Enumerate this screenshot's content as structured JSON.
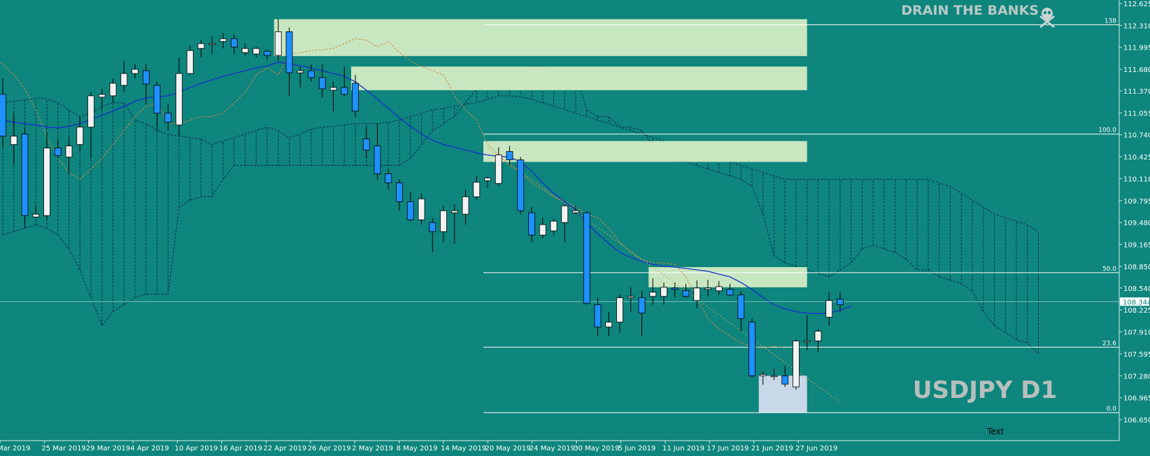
{
  "branding": {
    "text": "DRAIN THE BANKS"
  },
  "symbol_label": "USDJPY D1",
  "chart_data": {
    "type": "candlestick",
    "symbol": "USDJPY",
    "timeframe": "D1",
    "price_axis": {
      "ylim": [
        106.65,
        112.625
      ],
      "ticks": [
        "112.625",
        "112.310",
        "111.995",
        "111.680",
        "111.370",
        "111.055",
        "110.740",
        "110.425",
        "110.110",
        "109.795",
        "109.480",
        "109.165",
        "108.850",
        "108.540",
        "108.225",
        "107.910",
        "107.595",
        "107.280",
        "106.965",
        "106.650"
      ],
      "current_price": "108.344"
    },
    "date_axis": {
      "labels": [
        "Mar 2019",
        "25 Mar 2019",
        "29 Mar 2019",
        "4 Apr 2019",
        "10 Apr 2019",
        "16 Apr 2019",
        "22 Apr 2019",
        "26 Apr 2019",
        "2 May 2019",
        "8 May 2019",
        "14 May 2019",
        "20 May 2019",
        "24 May 2019",
        "30 May 2019",
        "5 Jun 2019",
        "11 Jun 2019",
        "17 Jun 2019",
        "21 Jun 2019",
        "27 Jun 2019"
      ]
    },
    "candles": [
      {
        "o": 111.32,
        "h": 111.55,
        "l": 110.55,
        "c": 110.72
      },
      {
        "o": 110.6,
        "h": 111.05,
        "l": 110.3,
        "c": 110.72
      },
      {
        "o": 110.75,
        "h": 110.85,
        "l": 109.4,
        "c": 109.58
      },
      {
        "o": 109.56,
        "h": 109.72,
        "l": 109.55,
        "c": 109.6
      },
      {
        "o": 109.58,
        "h": 110.78,
        "l": 109.52,
        "c": 110.55
      },
      {
        "o": 110.55,
        "h": 110.68,
        "l": 110.4,
        "c": 110.44
      },
      {
        "o": 110.42,
        "h": 110.7,
        "l": 110.18,
        "c": 110.58
      },
      {
        "o": 110.6,
        "h": 111.0,
        "l": 110.5,
        "c": 110.85
      },
      {
        "o": 110.85,
        "h": 111.35,
        "l": 110.4,
        "c": 111.3
      },
      {
        "o": 111.28,
        "h": 111.4,
        "l": 111.1,
        "c": 111.32
      },
      {
        "o": 111.3,
        "h": 111.55,
        "l": 111.2,
        "c": 111.48
      },
      {
        "o": 111.45,
        "h": 111.8,
        "l": 111.35,
        "c": 111.62
      },
      {
        "o": 111.62,
        "h": 111.76,
        "l": 111.55,
        "c": 111.68
      },
      {
        "o": 111.66,
        "h": 111.75,
        "l": 111.18,
        "c": 111.47
      },
      {
        "o": 111.45,
        "h": 111.5,
        "l": 110.8,
        "c": 111.05
      },
      {
        "o": 111.05,
        "h": 111.18,
        "l": 110.8,
        "c": 110.92
      },
      {
        "o": 110.88,
        "h": 111.85,
        "l": 110.72,
        "c": 111.62
      },
      {
        "o": 111.62,
        "h": 112.02,
        "l": 111.6,
        "c": 111.95
      },
      {
        "o": 111.98,
        "h": 112.1,
        "l": 111.85,
        "c": 112.05
      },
      {
        "o": 112.05,
        "h": 112.15,
        "l": 111.9,
        "c": 112.05
      },
      {
        "o": 112.08,
        "h": 112.2,
        "l": 111.98,
        "c": 112.12
      },
      {
        "o": 112.12,
        "h": 112.18,
        "l": 111.9,
        "c": 112.0
      },
      {
        "o": 111.92,
        "h": 112.05,
        "l": 111.88,
        "c": 111.98
      },
      {
        "o": 111.9,
        "h": 112.0,
        "l": 111.85,
        "c": 111.98
      },
      {
        "o": 111.94,
        "h": 111.96,
        "l": 111.82,
        "c": 111.88
      },
      {
        "o": 111.88,
        "h": 112.4,
        "l": 111.8,
        "c": 112.22
      },
      {
        "o": 112.22,
        "h": 112.28,
        "l": 111.3,
        "c": 111.63
      },
      {
        "o": 111.63,
        "h": 111.72,
        "l": 111.42,
        "c": 111.66
      },
      {
        "o": 111.66,
        "h": 111.75,
        "l": 111.5,
        "c": 111.56
      },
      {
        "o": 111.56,
        "h": 111.75,
        "l": 111.28,
        "c": 111.4
      },
      {
        "o": 111.38,
        "h": 111.5,
        "l": 111.08,
        "c": 111.42
      },
      {
        "o": 111.42,
        "h": 111.72,
        "l": 111.3,
        "c": 111.32
      },
      {
        "o": 111.48,
        "h": 111.6,
        "l": 111.0,
        "c": 111.08
      },
      {
        "o": 110.68,
        "h": 110.85,
        "l": 110.4,
        "c": 110.52
      },
      {
        "o": 110.58,
        "h": 110.9,
        "l": 110.1,
        "c": 110.18
      },
      {
        "o": 110.18,
        "h": 110.25,
        "l": 109.95,
        "c": 110.05
      },
      {
        "o": 110.05,
        "h": 110.1,
        "l": 109.65,
        "c": 109.78
      },
      {
        "o": 109.78,
        "h": 109.92,
        "l": 109.5,
        "c": 109.52
      },
      {
        "o": 109.52,
        "h": 109.9,
        "l": 109.45,
        "c": 109.82
      },
      {
        "o": 109.48,
        "h": 109.55,
        "l": 109.05,
        "c": 109.35
      },
      {
        "o": 109.35,
        "h": 109.72,
        "l": 109.2,
        "c": 109.65
      },
      {
        "o": 109.62,
        "h": 109.74,
        "l": 109.18,
        "c": 109.65
      },
      {
        "o": 109.6,
        "h": 109.95,
        "l": 109.45,
        "c": 109.85
      },
      {
        "o": 109.85,
        "h": 110.15,
        "l": 109.8,
        "c": 110.06
      },
      {
        "o": 110.08,
        "h": 110.14,
        "l": 109.98,
        "c": 110.12
      },
      {
        "o": 110.04,
        "h": 110.56,
        "l": 110.0,
        "c": 110.45
      },
      {
        "o": 110.5,
        "h": 110.58,
        "l": 110.3,
        "c": 110.38
      },
      {
        "o": 110.38,
        "h": 110.42,
        "l": 109.6,
        "c": 109.65
      },
      {
        "o": 109.62,
        "h": 109.7,
        "l": 109.2,
        "c": 109.3
      },
      {
        "o": 109.3,
        "h": 109.55,
        "l": 109.25,
        "c": 109.45
      },
      {
        "o": 109.36,
        "h": 109.53,
        "l": 109.3,
        "c": 109.5
      },
      {
        "o": 109.48,
        "h": 109.74,
        "l": 109.2,
        "c": 109.72
      },
      {
        "o": 109.62,
        "h": 109.72,
        "l": 109.6,
        "c": 109.65
      },
      {
        "o": 109.62,
        "h": 109.64,
        "l": 108.3,
        "c": 108.32
      },
      {
        "o": 108.3,
        "h": 108.4,
        "l": 107.85,
        "c": 107.98
      },
      {
        "o": 107.98,
        "h": 108.2,
        "l": 107.85,
        "c": 108.05
      },
      {
        "o": 108.05,
        "h": 108.45,
        "l": 107.9,
        "c": 108.4
      },
      {
        "o": 108.4,
        "h": 108.55,
        "l": 108.2,
        "c": 108.42
      },
      {
        "o": 108.4,
        "h": 108.5,
        "l": 107.85,
        "c": 108.18
      },
      {
        "o": 108.42,
        "h": 108.68,
        "l": 108.3,
        "c": 108.48
      },
      {
        "o": 108.42,
        "h": 108.62,
        "l": 108.3,
        "c": 108.55
      },
      {
        "o": 108.54,
        "h": 108.62,
        "l": 108.4,
        "c": 108.52
      },
      {
        "o": 108.5,
        "h": 108.6,
        "l": 108.4,
        "c": 108.42
      },
      {
        "o": 108.36,
        "h": 108.65,
        "l": 108.25,
        "c": 108.54
      },
      {
        "o": 108.52,
        "h": 108.66,
        "l": 108.42,
        "c": 108.54
      },
      {
        "o": 108.5,
        "h": 108.64,
        "l": 108.44,
        "c": 108.56
      },
      {
        "o": 108.52,
        "h": 108.6,
        "l": 108.42,
        "c": 108.44
      },
      {
        "o": 108.44,
        "h": 108.5,
        "l": 107.92,
        "c": 108.1
      },
      {
        "o": 108.05,
        "h": 108.1,
        "l": 107.25,
        "c": 107.28
      },
      {
        "o": 107.28,
        "h": 107.34,
        "l": 107.15,
        "c": 107.3
      },
      {
        "o": 107.28,
        "h": 107.38,
        "l": 107.22,
        "c": 107.28
      },
      {
        "o": 107.28,
        "h": 107.42,
        "l": 107.12,
        "c": 107.16
      },
      {
        "o": 107.12,
        "h": 107.8,
        "l": 107.08,
        "c": 107.78
      },
      {
        "o": 107.78,
        "h": 108.15,
        "l": 107.65,
        "c": 107.78
      },
      {
        "o": 107.78,
        "h": 107.95,
        "l": 107.62,
        "c": 107.92
      },
      {
        "o": 108.12,
        "h": 108.48,
        "l": 108.0,
        "c": 108.36
      },
      {
        "o": 108.38,
        "h": 108.48,
        "l": 108.2,
        "c": 108.3
      }
    ],
    "moving_average": [
      110.95,
      110.92,
      110.9,
      110.88,
      110.85,
      110.84,
      110.86,
      110.9,
      110.96,
      111.02,
      111.08,
      111.15,
      111.22,
      111.27,
      111.28,
      111.3,
      111.35,
      111.42,
      111.48,
      111.53,
      111.58,
      111.62,
      111.66,
      111.7,
      111.73,
      111.78,
      111.76,
      111.73,
      111.7,
      111.66,
      111.62,
      111.58,
      111.5,
      111.38,
      111.25,
      111.12,
      110.98,
      110.86,
      110.75,
      110.66,
      110.6,
      110.56,
      110.52,
      110.48,
      110.45,
      110.43,
      110.42,
      110.35,
      110.22,
      110.05,
      109.9,
      109.78,
      109.66,
      109.48,
      109.32,
      109.18,
      109.05,
      108.98,
      108.92,
      108.88,
      108.85,
      108.84,
      108.82,
      108.8,
      108.78,
      108.74,
      108.7,
      108.62,
      108.52,
      108.4,
      108.3,
      108.24,
      108.2,
      108.18,
      108.17,
      108.18,
      108.22,
      108.28
    ],
    "fib_levels": [
      {
        "label": "138",
        "price": 112.32
      },
      {
        "label": "100.0",
        "price": 110.75
      },
      {
        "label": "50.0",
        "price": 108.76
      },
      {
        "label": "23.6",
        "price": 107.69
      },
      {
        "label": "0.0",
        "price": 106.75
      }
    ],
    "zones": [
      {
        "x0": 25,
        "x1": 73,
        "top": 112.4,
        "bottom": 111.87
      },
      {
        "x0": 32,
        "x1": 73,
        "top": 111.72,
        "bottom": 111.38
      },
      {
        "x0": 44,
        "x1": 73,
        "top": 110.65,
        "bottom": 110.35
      },
      {
        "x0": 59,
        "x1": 73,
        "top": 108.84,
        "bottom": 108.55
      },
      {
        "x0": 69,
        "x1": 73,
        "top": 107.28,
        "bottom": 106.75
      }
    ],
    "cloud": {
      "a": [
        109.3,
        109.35,
        109.4,
        109.45,
        109.4,
        109.3,
        109.1,
        108.8,
        108.4,
        108.0,
        108.2,
        108.3,
        108.4,
        108.45,
        108.45,
        108.45,
        109.7,
        109.8,
        109.85,
        109.85,
        110.1,
        110.3,
        110.3,
        110.3,
        110.3,
        110.3,
        110.3,
        110.3,
        110.3,
        110.3,
        110.3,
        110.3,
        110.3,
        110.3,
        110.3,
        110.3,
        110.3,
        110.4,
        110.6,
        110.8,
        110.9,
        111.0,
        111.2,
        111.4,
        111.5,
        111.6,
        111.65,
        111.7,
        111.72,
        111.72,
        111.7,
        111.7,
        111.6,
        111.1,
        111.0,
        111.0,
        110.85,
        110.85,
        110.8,
        110.6,
        110.4,
        110.35,
        110.35,
        110.3,
        110.25,
        110.2,
        110.15,
        110.1,
        110.0,
        109.6,
        109.0,
        108.9,
        108.85,
        108.8,
        108.75,
        108.7,
        108.8,
        108.9,
        109.1,
        109.15,
        109.1,
        109.05,
        108.95,
        108.8,
        108.8,
        108.7,
        108.65,
        108.6,
        108.5,
        108.2,
        108.0,
        107.9,
        107.8,
        107.75,
        107.6
      ],
      "b": [
        111.2,
        111.22,
        111.24,
        111.26,
        111.26,
        111.2,
        111.1,
        111.0,
        111.05,
        111.15,
        111.2,
        111.2,
        110.95,
        110.9,
        110.8,
        110.75,
        110.72,
        110.7,
        110.68,
        110.6,
        110.65,
        110.7,
        110.75,
        110.8,
        110.85,
        110.8,
        110.7,
        110.75,
        110.82,
        110.85,
        110.86,
        110.88,
        110.9,
        110.9,
        110.9,
        110.92,
        110.95,
        111.0,
        111.05,
        111.1,
        111.12,
        111.15,
        111.18,
        111.2,
        111.25,
        111.3,
        111.3,
        111.28,
        111.25,
        111.2,
        111.15,
        111.1,
        111.05,
        111.0,
        110.95,
        110.9,
        110.85,
        110.8,
        110.75,
        110.7,
        110.65,
        110.6,
        110.55,
        110.5,
        110.45,
        110.4,
        110.35,
        110.3,
        110.25,
        110.2,
        110.15,
        110.1,
        110.1,
        110.1,
        110.1,
        110.1,
        110.1,
        110.1,
        110.1,
        110.1,
        110.1,
        110.1,
        110.1,
        110.1,
        110.1,
        110.05,
        110.0,
        109.9,
        109.8,
        109.7,
        109.6,
        109.55,
        109.5,
        109.45,
        109.35
      ]
    },
    "chikou_x0": -5,
    "chikou": [
      112.1,
      112.15,
      112.15,
      112.05,
      111.9,
      111.75,
      111.6,
      111.4,
      111.1,
      110.7,
      110.4,
      110.2,
      110.1,
      110.25,
      110.4,
      110.6,
      110.8,
      111.0,
      111.15,
      111.2,
      110.9,
      110.9,
      110.95,
      111.0,
      111.0,
      111.05,
      111.2,
      111.35,
      111.6,
      111.7,
      111.6,
      111.9,
      111.92,
      111.95,
      111.96,
      111.98,
      112.05,
      112.12,
      112.1,
      112.0,
      112.08,
      111.92,
      111.8,
      111.72,
      111.66,
      111.6,
      111.3,
      111.1,
      110.95,
      110.6,
      110.45,
      110.3,
      110.2,
      110.05,
      109.95,
      109.85,
      109.78,
      109.7,
      109.6,
      109.55,
      109.4,
      109.2,
      109.05,
      108.95,
      108.9,
      108.9,
      108.88,
      108.7,
      108.4,
      108.1,
      107.95,
      107.85,
      107.75,
      107.7,
      107.68,
      107.7,
      107.68
    ],
    "trend_line": [
      {
        "x": 44,
        "price": 110.55
      },
      {
        "x": 76,
        "price": 106.9
      }
    ]
  }
}
